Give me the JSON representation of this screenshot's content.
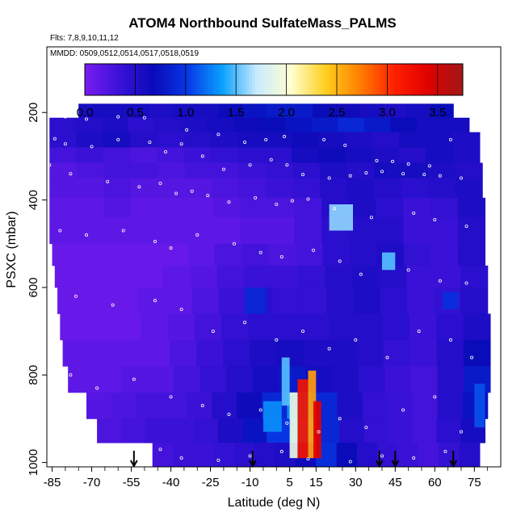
{
  "chart_data": {
    "type": "heatmap",
    "title": "ATOM4 Northbound SulfateMass_PALMS",
    "flights_label": "Flts: 7,8,9,10,11,12",
    "dates_label": "MMDD: 0509,0512,0514,0517,0518,0519",
    "xlabel": "Latitude (deg N)",
    "ylabel": "PSXC (mbar)",
    "x_ticks": [
      "-85",
      "-70",
      "-55",
      "-40",
      "-25",
      "-10",
      "5",
      "15",
      "30",
      "45",
      "60",
      "75"
    ],
    "x_tick_values": [
      -85,
      -70,
      -55,
      -40,
      -25,
      -10,
      5,
      15,
      30,
      45,
      60,
      75
    ],
    "y_ticks": [
      "200",
      "400",
      "600",
      "800",
      "1000"
    ],
    "y_tick_values": [
      200,
      400,
      600,
      800,
      1000
    ],
    "xlim": [
      -87,
      85
    ],
    "ylim": [
      1010,
      50
    ],
    "colorbar": {
      "ticks": [
        "0.0",
        "0.5",
        "1.0",
        "1.5",
        "2.0",
        "2.5",
        "3.0",
        "3.5"
      ],
      "tick_values": [
        0,
        0.5,
        1.0,
        1.5,
        2.0,
        2.5,
        3.0,
        3.5
      ],
      "range": [
        0,
        3.75
      ],
      "colors": [
        "#7a1cf0",
        "#3b12d8",
        "#0a0ab8",
        "#0838e6",
        "#0aa0ff",
        "#c8eaff",
        "#ffffd0",
        "#ffd020",
        "#ff8000",
        "#ff2000",
        "#e00000",
        "#a01818"
      ]
    },
    "layers": [
      {
        "p_top": 180,
        "p_bot": 212,
        "lat_start": -75,
        "lat_end": 67,
        "values": [
          0.6,
          0.6,
          0.6,
          0.55,
          0.6,
          0.6,
          0.7,
          0.75,
          0.8,
          0.8,
          0.7,
          0.65,
          0.6,
          0.55,
          0.6,
          0.7
        ]
      },
      {
        "p_top": 212,
        "p_bot": 245,
        "lat_start": -86,
        "lat_end": 73,
        "values": [
          0.45,
          0.5,
          0.55,
          0.45,
          0.5,
          0.55,
          0.6,
          0.65,
          0.7,
          0.75,
          0.8,
          0.9,
          0.8,
          0.7,
          0.6,
          0.6
        ]
      },
      {
        "p_top": 245,
        "p_bot": 280,
        "lat_start": -86,
        "lat_end": 77,
        "values": [
          0.45,
          0.55,
          0.6,
          0.5,
          0.45,
          0.5,
          0.55,
          0.6,
          0.6,
          0.65,
          0.6,
          0.55,
          0.5,
          0.6,
          0.6,
          0.55
        ]
      },
      {
        "p_top": 280,
        "p_bot": 315,
        "lat_start": -86,
        "lat_end": 77,
        "values": [
          0.3,
          0.35,
          0.3,
          0.25,
          0.3,
          0.35,
          0.4,
          0.45,
          0.45,
          0.6,
          0.65,
          0.6,
          0.55,
          0.5,
          0.6,
          0.55
        ]
      },
      {
        "p_top": 315,
        "p_bot": 350,
        "lat_start": -86,
        "lat_end": 78,
        "values": [
          0.2,
          0.25,
          0.3,
          0.3,
          0.25,
          0.3,
          0.3,
          0.35,
          0.4,
          0.45,
          0.55,
          0.5,
          0.6,
          0.6,
          0.55,
          0.5
        ]
      },
      {
        "p_top": 350,
        "p_bot": 395,
        "lat_start": -86,
        "lat_end": 78,
        "values": [
          0.2,
          0.2,
          0.25,
          0.2,
          0.2,
          0.2,
          0.25,
          0.3,
          0.35,
          0.4,
          0.5,
          0.55,
          0.5,
          0.45,
          0.5,
          0.55
        ]
      },
      {
        "p_top": 395,
        "p_bot": 440,
        "lat_start": -86,
        "lat_end": 79,
        "values": [
          0.15,
          0.15,
          0.2,
          0.15,
          0.15,
          0.15,
          0.2,
          0.25,
          0.25,
          0.3,
          0.5,
          0.55,
          0.45,
          0.35,
          0.4,
          0.55
        ]
      },
      {
        "p_top": 440,
        "p_bot": 500,
        "lat_start": -86,
        "lat_end": 79,
        "values": [
          0.15,
          0.15,
          0.15,
          0.15,
          0.15,
          0.15,
          0.15,
          0.2,
          0.2,
          0.3,
          0.45,
          0.5,
          0.5,
          0.35,
          0.35,
          0.5
        ]
      },
      {
        "p_top": 500,
        "p_bot": 550,
        "lat_start": -85,
        "lat_end": 79,
        "values": [
          0.1,
          0.1,
          0.1,
          0.1,
          0.1,
          0.15,
          0.25,
          0.3,
          0.25,
          0.3,
          0.45,
          0.5,
          0.55,
          0.4,
          0.35,
          0.5
        ]
      },
      {
        "p_top": 550,
        "p_bot": 600,
        "lat_start": -84,
        "lat_end": 80,
        "values": [
          0.1,
          0.1,
          0.1,
          0.1,
          0.15,
          0.2,
          0.3,
          0.35,
          0.35,
          0.4,
          0.5,
          0.55,
          0.5,
          0.35,
          0.35,
          0.45
        ]
      },
      {
        "p_top": 600,
        "p_bot": 660,
        "lat_start": -83,
        "lat_end": 80,
        "values": [
          0.1,
          0.1,
          0.1,
          0.15,
          0.15,
          0.25,
          0.35,
          0.45,
          0.4,
          0.4,
          0.5,
          0.55,
          0.45,
          0.35,
          0.4,
          0.5
        ]
      },
      {
        "p_top": 660,
        "p_bot": 720,
        "lat_start": -82,
        "lat_end": 81,
        "values": [
          0.1,
          0.1,
          0.1,
          0.15,
          0.2,
          0.3,
          0.4,
          0.45,
          0.45,
          0.45,
          0.5,
          0.5,
          0.45,
          0.35,
          0.45,
          0.55
        ]
      },
      {
        "p_top": 720,
        "p_bot": 780,
        "lat_start": -81,
        "lat_end": 81,
        "values": [
          0.15,
          0.15,
          0.15,
          0.15,
          0.25,
          0.35,
          0.45,
          0.55,
          0.6,
          0.55,
          0.55,
          0.5,
          0.4,
          0.35,
          0.5,
          0.7
        ]
      },
      {
        "p_top": 780,
        "p_bot": 840,
        "lat_start": -79,
        "lat_end": 81,
        "values": [
          0.15,
          0.15,
          0.2,
          0.2,
          0.3,
          0.4,
          0.5,
          0.6,
          0.8,
          0.6,
          0.55,
          0.45,
          0.35,
          0.3,
          0.5,
          0.8
        ]
      },
      {
        "p_top": 840,
        "p_bot": 900,
        "lat_start": -72,
        "lat_end": 80,
        "values": [
          0.2,
          0.25,
          0.3,
          0.3,
          0.35,
          0.5,
          0.65,
          0.9,
          1.3,
          0.9,
          0.55,
          0.4,
          0.35,
          0.3,
          0.5,
          0.75
        ]
      },
      {
        "p_top": 900,
        "p_bot": 955,
        "lat_start": -68,
        "lat_end": 79,
        "values": [
          0.25,
          0.3,
          0.35,
          0.35,
          0.4,
          0.55,
          0.75,
          1.0,
          1.4,
          0.9,
          0.5,
          0.4,
          0.35,
          0.3,
          0.45,
          0.6
        ]
      },
      {
        "p_top": 955,
        "p_bot": 1010,
        "lat_start": -47,
        "lat_end": 77,
        "values": [
          0.3,
          0.35,
          0.35,
          0.4,
          0.45,
          0.5,
          0.55,
          0.65,
          0.95,
          0.7,
          0.5,
          0.4,
          0.35,
          0.3,
          0.4,
          0.5
        ]
      }
    ],
    "hotspots": [
      {
        "lat_start": 8,
        "lat_end": 12,
        "p_top": 810,
        "p_bot": 990,
        "value": 3.2
      },
      {
        "lat_start": 12,
        "lat_end": 15,
        "p_top": 790,
        "p_bot": 990,
        "value": 2.6
      },
      {
        "lat_start": 14,
        "lat_end": 17,
        "p_top": 860,
        "p_bot": 990,
        "value": 3.4
      },
      {
        "lat_start": 5,
        "lat_end": 8,
        "p_top": 840,
        "p_bot": 990,
        "value": 1.9
      },
      {
        "lat_start": 2,
        "lat_end": 5,
        "p_top": 760,
        "p_bot": 870,
        "value": 1.5
      },
      {
        "lat_start": -5,
        "lat_end": 2,
        "p_top": 860,
        "p_bot": 930,
        "value": 1.3
      },
      {
        "lat_start": 20,
        "lat_end": 29,
        "p_top": 410,
        "p_bot": 470,
        "value": 1.6
      },
      {
        "lat_start": 40,
        "lat_end": 45,
        "p_top": 520,
        "p_bot": 560,
        "value": 1.5
      },
      {
        "lat_start": 75,
        "lat_end": 79,
        "p_top": 820,
        "p_bot": 920,
        "value": 1.1
      },
      {
        "lat_start": 63,
        "lat_end": 69,
        "p_top": 610,
        "p_bot": 650,
        "value": 0.95
      },
      {
        "lat_start": -12,
        "lat_end": -4,
        "p_top": 600,
        "p_bot": 660,
        "value": 0.9
      }
    ],
    "flight_arrows_lat": [
      -54,
      -9,
      39,
      45,
      67
    ],
    "sample_points": [
      [
        -80,
        210
      ],
      [
        -72,
        215
      ],
      [
        -60,
        210
      ],
      [
        -50,
        212
      ],
      [
        -34,
        240
      ],
      [
        -22,
        250
      ],
      [
        -12,
        268
      ],
      [
        -4,
        262
      ],
      [
        3,
        255
      ],
      [
        18,
        262
      ],
      [
        26,
        275
      ],
      [
        38,
        310
      ],
      [
        44,
        312
      ],
      [
        50,
        318
      ],
      [
        58,
        322
      ],
      [
        66,
        262
      ],
      [
        -84,
        260
      ],
      [
        -80,
        272
      ],
      [
        -70,
        278
      ],
      [
        -60,
        262
      ],
      [
        -48,
        268
      ],
      [
        -42,
        290
      ],
      [
        -36,
        272
      ],
      [
        -28,
        300
      ],
      [
        -20,
        330
      ],
      [
        -10,
        320
      ],
      [
        -2,
        308
      ],
      [
        4,
        320
      ],
      [
        10,
        342
      ],
      [
        20,
        350
      ],
      [
        28,
        345
      ],
      [
        34,
        338
      ],
      [
        40,
        335
      ],
      [
        48,
        340
      ],
      [
        56,
        342
      ],
      [
        62,
        345
      ],
      [
        70,
        350
      ],
      [
        -86,
        320
      ],
      [
        -78,
        340
      ],
      [
        -64,
        358
      ],
      [
        -52,
        370
      ],
      [
        -44,
        362
      ],
      [
        -38,
        385
      ],
      [
        -32,
        380
      ],
      [
        -26,
        390
      ],
      [
        -18,
        405
      ],
      [
        -8,
        395
      ],
      [
        0,
        410
      ],
      [
        6,
        402
      ],
      [
        12,
        398
      ],
      [
        22,
        420
      ],
      [
        36,
        440
      ],
      [
        52,
        430
      ],
      [
        60,
        445
      ],
      [
        72,
        460
      ],
      [
        -82,
        470
      ],
      [
        -72,
        480
      ],
      [
        -58,
        470
      ],
      [
        -46,
        495
      ],
      [
        -40,
        510
      ],
      [
        -30,
        480
      ],
      [
        -16,
        500
      ],
      [
        -6,
        520
      ],
      [
        2,
        530
      ],
      [
        14,
        515
      ],
      [
        24,
        540
      ],
      [
        32,
        570
      ],
      [
        50,
        560
      ],
      [
        62,
        585
      ],
      [
        72,
        590
      ],
      [
        -76,
        620
      ],
      [
        -62,
        640
      ],
      [
        -46,
        630
      ],
      [
        -36,
        650
      ],
      [
        -24,
        700
      ],
      [
        -12,
        680
      ],
      [
        0,
        720
      ],
      [
        10,
        700
      ],
      [
        20,
        740
      ],
      [
        30,
        720
      ],
      [
        42,
        760
      ],
      [
        54,
        700
      ],
      [
        66,
        720
      ],
      [
        74,
        760
      ],
      [
        -78,
        800
      ],
      [
        -68,
        830
      ],
      [
        -54,
        810
      ],
      [
        -40,
        850
      ],
      [
        -28,
        870
      ],
      [
        -18,
        890
      ],
      [
        -6,
        880
      ],
      [
        4,
        910
      ],
      [
        16,
        930
      ],
      [
        24,
        900
      ],
      [
        34,
        920
      ],
      [
        48,
        880
      ],
      [
        60,
        850
      ],
      [
        70,
        930
      ],
      [
        -44,
        970
      ],
      [
        -36,
        990
      ],
      [
        -22,
        995
      ],
      [
        -10,
        985
      ],
      [
        2,
        975
      ],
      [
        12,
        992
      ],
      [
        28,
        998
      ],
      [
        40,
        985
      ],
      [
        52,
        990
      ],
      [
        64,
        975
      ],
      [
        78,
        995
      ]
    ]
  }
}
